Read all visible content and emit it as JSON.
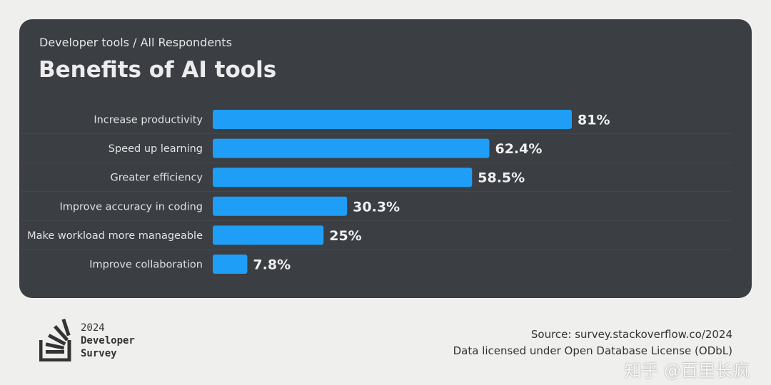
{
  "header": {
    "subtitle": "Developer tools / All Respondents",
    "title": "Benefits of AI tools"
  },
  "chart_data": {
    "type": "bar",
    "orientation": "horizontal",
    "title": "Benefits of AI tools",
    "subtitle": "Developer tools / All Respondents",
    "categories": [
      "Increase productivity",
      "Speed up learning",
      "Greater efficiency",
      "Improve accuracy in coding",
      "Make workload more manageable",
      "Improve collaboration"
    ],
    "values": [
      81,
      62.4,
      58.5,
      30.3,
      25,
      7.8
    ],
    "value_labels": [
      "81%",
      "62.4%",
      "58.5%",
      "30.3%",
      "25%",
      "7.8%"
    ],
    "unit": "%",
    "xlim": [
      0,
      100
    ],
    "grid": false,
    "bar_color": "#1e9ef7",
    "background_color": "#3b3e43"
  },
  "footer": {
    "logo": {
      "year": "2024",
      "line1": "Developer",
      "line2": "Survey"
    },
    "source": "Source: survey.stackoverflow.co/2024",
    "license": "Data licensed under Open Database License (ODbL)",
    "watermark": "知乎 @百里长疯"
  }
}
